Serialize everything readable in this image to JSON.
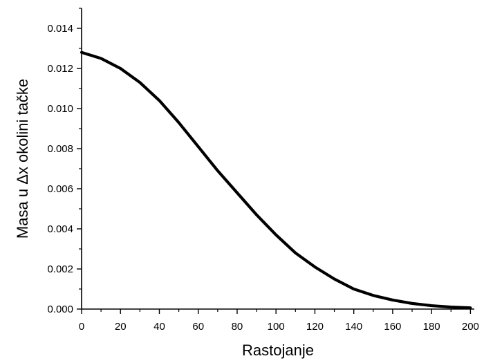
{
  "chart_data": {
    "type": "line",
    "title": "",
    "xlabel": "Rastojanje",
    "ylabel": "Masa u  Δx okolini tačke",
    "xlim": [
      0,
      202
    ],
    "ylim": [
      0,
      0.015
    ],
    "x_ticks": [
      0,
      20,
      40,
      60,
      80,
      100,
      120,
      140,
      160,
      180,
      200
    ],
    "x_tick_labels": [
      "0",
      "20",
      "40",
      "60",
      "80",
      "100",
      "120",
      "140",
      "160",
      "180",
      "200"
    ],
    "y_ticks": [
      0.0,
      0.002,
      0.004,
      0.006,
      0.008,
      0.01,
      0.012,
      0.014
    ],
    "y_tick_labels": [
      "0.000",
      "0.002",
      "0.004",
      "0.006",
      "0.008",
      "0.010",
      "0.012",
      "0.014"
    ],
    "grid": false,
    "legend": "none",
    "line_color": "#000000",
    "series": [
      {
        "x": [
          0,
          10,
          20,
          30,
          40,
          50,
          60,
          70,
          80,
          90,
          100,
          110,
          120,
          130,
          140,
          150,
          160,
          170,
          180,
          190,
          200
        ],
        "y": [
          0.0128,
          0.0125,
          0.012,
          0.0113,
          0.0104,
          0.0093,
          0.0081,
          0.0069,
          0.0058,
          0.0047,
          0.0037,
          0.0028,
          0.0021,
          0.0015,
          0.001,
          0.00068,
          0.00045,
          0.00028,
          0.00017,
          0.0001,
          6e-05
        ]
      }
    ]
  }
}
